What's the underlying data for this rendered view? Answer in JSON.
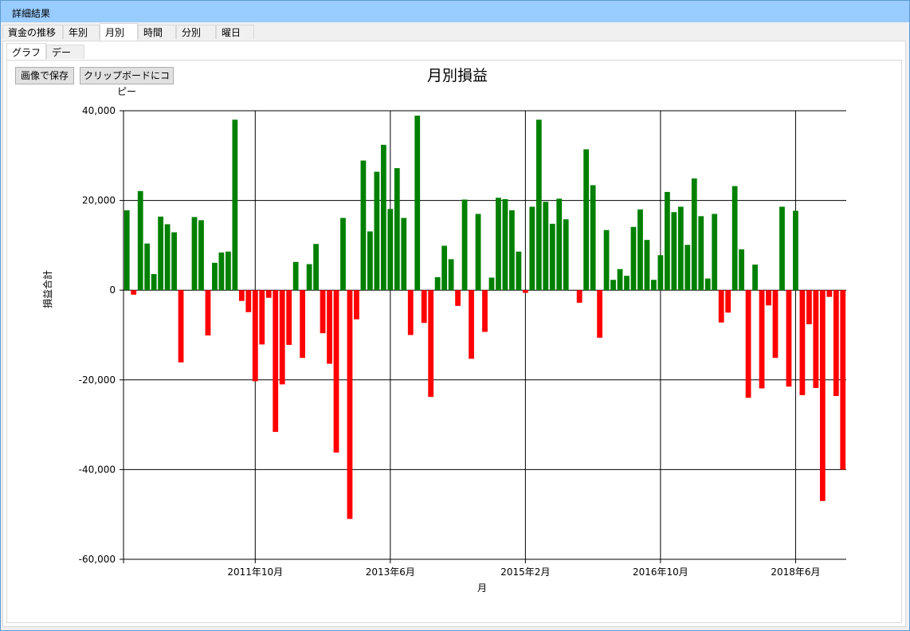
{
  "window": {
    "title": "詳細結果"
  },
  "tabs": [
    {
      "label": "資金の推移"
    },
    {
      "label": "年別"
    },
    {
      "label": "月別"
    },
    {
      "label": "時間別"
    },
    {
      "label": "分別"
    },
    {
      "label": "曜日別"
    }
  ],
  "subtabs": [
    {
      "label": "グラフ"
    },
    {
      "label": "データ"
    }
  ],
  "toolbar": {
    "save_image_label": "画像で保存",
    "copy_clipboard_label": "クリップボードにコピー"
  },
  "colors": {
    "positive": "#008000",
    "negative": "#ff0000"
  },
  "chart_data": {
    "type": "bar",
    "title": "月別損益",
    "xlabel": "月",
    "ylabel": "損益合計",
    "ylim": [
      -60000,
      40000
    ],
    "yticks": [
      40000,
      20000,
      0,
      -20000,
      -40000,
      -60000
    ],
    "ytick_labels": [
      "40,000",
      "20,000",
      "0",
      "-20,000",
      "-40,000",
      "-60,000"
    ],
    "xticks": [
      {
        "index": 19.5,
        "label": "2011年10月"
      },
      {
        "index": 39.5,
        "label": "2013年6月"
      },
      {
        "index": 59.5,
        "label": "2015年2月"
      },
      {
        "index": 79.5,
        "label": "2016年10月"
      },
      {
        "index": 99.5,
        "label": "2018年6月"
      }
    ],
    "grid": true,
    "values": [
      17800,
      -1000,
      22100,
      10400,
      3600,
      16400,
      14700,
      12900,
      -16100,
      0,
      16300,
      15600,
      -10100,
      6100,
      8400,
      8600,
      38000,
      -2400,
      -4900,
      -20300,
      -12100,
      -1700,
      -31600,
      -21000,
      -12200,
      6300,
      -15100,
      5800,
      10300,
      -9600,
      -16400,
      -36200,
      16100,
      -51000,
      -6500,
      28900,
      13100,
      26400,
      32400,
      18100,
      27200,
      16100,
      -10000,
      38900,
      -7300,
      -23800,
      2900,
      9900,
      6900,
      -3500,
      20200,
      -15300,
      17000,
      -9300,
      2800,
      20600,
      20300,
      17800,
      8600,
      -600,
      18600,
      38000,
      19700,
      14800,
      20400,
      15800,
      0,
      -2800,
      31400,
      23400,
      -10600,
      13400,
      2300,
      4700,
      3200,
      14100,
      18000,
      11200,
      2300,
      7800,
      21900,
      17400,
      18600,
      10100,
      24900,
      16500,
      2600,
      17000,
      -7200,
      -5000,
      23200,
      9100,
      -24000,
      5700,
      -21900,
      -3400,
      -15100,
      18600,
      -21500,
      17700,
      -23400,
      -7600,
      -21800,
      -47000,
      -1500,
      -23600,
      -40000
    ]
  }
}
